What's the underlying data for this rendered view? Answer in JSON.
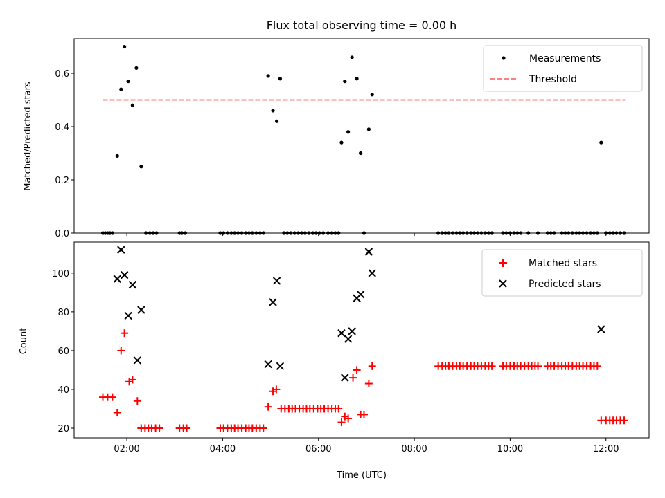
{
  "chart_data": [
    {
      "type": "scatter",
      "title": "Flux total observing time = 0.00 h",
      "xlabel": "",
      "ylabel": "Matched/Predicted stars",
      "xlim": [
        0.9,
        12.9
      ],
      "ylim": [
        0.0,
        0.73
      ],
      "yticks": [
        0.0,
        0.2,
        0.4,
        0.6
      ],
      "ytick_labels": [
        "0.0",
        "0.2",
        "0.4",
        "0.6"
      ],
      "xticks": [
        2,
        4,
        6,
        8,
        10,
        12
      ],
      "legend_position": "top-right",
      "legend": [
        {
          "label": "Measurements",
          "marker": "dot",
          "color": "#000000"
        },
        {
          "label": "Threshold",
          "marker": "dashed-line",
          "color": "#ff7f7f"
        }
      ],
      "threshold": {
        "value": 0.5,
        "x_start": 1.5,
        "x_end": 12.4
      },
      "series": [
        {
          "name": "Measurements",
          "color": "#000000",
          "points": [
            [
              1.5,
              0
            ],
            [
              1.55,
              0
            ],
            [
              1.6,
              0
            ],
            [
              1.65,
              0
            ],
            [
              1.7,
              0
            ],
            [
              1.8,
              0.29
            ],
            [
              1.88,
              0.54
            ],
            [
              1.95,
              0.7
            ],
            [
              2.03,
              0.57
            ],
            [
              2.12,
              0.48
            ],
            [
              2.2,
              0.62
            ],
            [
              2.3,
              0.25
            ],
            [
              2.4,
              0
            ],
            [
              2.48,
              0
            ],
            [
              2.55,
              0
            ],
            [
              2.62,
              0
            ],
            [
              3.1,
              0
            ],
            [
              3.15,
              0
            ],
            [
              3.22,
              0
            ],
            [
              3.95,
              0
            ],
            [
              4.02,
              0
            ],
            [
              4.1,
              0
            ],
            [
              4.18,
              0
            ],
            [
              4.25,
              0
            ],
            [
              4.32,
              0
            ],
            [
              4.4,
              0
            ],
            [
              4.48,
              0
            ],
            [
              4.55,
              0
            ],
            [
              4.62,
              0
            ],
            [
              4.7,
              0
            ],
            [
              4.78,
              0
            ],
            [
              4.85,
              0
            ],
            [
              4.95,
              0.59
            ],
            [
              5.05,
              0.46
            ],
            [
              5.13,
              0.42
            ],
            [
              5.2,
              0.58
            ],
            [
              5.28,
              0
            ],
            [
              5.35,
              0
            ],
            [
              5.42,
              0
            ],
            [
              5.5,
              0
            ],
            [
              5.58,
              0
            ],
            [
              5.65,
              0
            ],
            [
              5.72,
              0
            ],
            [
              5.8,
              0
            ],
            [
              5.88,
              0
            ],
            [
              5.95,
              0
            ],
            [
              6.02,
              0
            ],
            [
              6.1,
              0
            ],
            [
              6.2,
              0
            ],
            [
              6.28,
              0
            ],
            [
              6.35,
              0
            ],
            [
              6.42,
              0
            ],
            [
              6.48,
              0.34
            ],
            [
              6.55,
              0.57
            ],
            [
              6.62,
              0.38
            ],
            [
              6.7,
              0.66
            ],
            [
              6.8,
              0.58
            ],
            [
              6.88,
              0.3
            ],
            [
              6.95,
              0
            ],
            [
              7.05,
              0.39
            ],
            [
              7.12,
              0.52
            ],
            [
              8.5,
              0
            ],
            [
              8.58,
              0
            ],
            [
              8.65,
              0
            ],
            [
              8.72,
              0
            ],
            [
              8.8,
              0
            ],
            [
              8.88,
              0
            ],
            [
              8.95,
              0
            ],
            [
              9.02,
              0
            ],
            [
              9.1,
              0
            ],
            [
              9.18,
              0
            ],
            [
              9.25,
              0
            ],
            [
              9.32,
              0
            ],
            [
              9.4,
              0
            ],
            [
              9.48,
              0
            ],
            [
              9.55,
              0
            ],
            [
              9.62,
              0
            ],
            [
              9.85,
              0
            ],
            [
              9.92,
              0
            ],
            [
              10.0,
              0
            ],
            [
              10.08,
              0
            ],
            [
              10.15,
              0
            ],
            [
              10.22,
              0
            ],
            [
              10.38,
              0
            ],
            [
              10.58,
              0
            ],
            [
              10.78,
              0
            ],
            [
              10.85,
              0
            ],
            [
              10.92,
              0
            ],
            [
              11.08,
              0
            ],
            [
              11.15,
              0
            ],
            [
              11.22,
              0
            ],
            [
              11.3,
              0
            ],
            [
              11.38,
              0
            ],
            [
              11.45,
              0
            ],
            [
              11.52,
              0
            ],
            [
              11.6,
              0
            ],
            [
              11.68,
              0
            ],
            [
              11.75,
              0
            ],
            [
              11.82,
              0
            ],
            [
              11.9,
              0.34
            ],
            [
              12.0,
              0
            ],
            [
              12.08,
              0
            ],
            [
              12.15,
              0
            ],
            [
              12.22,
              0
            ],
            [
              12.3,
              0
            ],
            [
              12.38,
              0
            ]
          ]
        }
      ]
    },
    {
      "type": "scatter",
      "title": "",
      "xlabel": "Time (UTC)",
      "ylabel": "Count",
      "xlim": [
        0.9,
        12.9
      ],
      "ylim": [
        15,
        116
      ],
      "yticks": [
        20,
        40,
        60,
        80,
        100
      ],
      "ytick_labels": [
        "20",
        "40",
        "60",
        "80",
        "100"
      ],
      "xticks": [
        2,
        4,
        6,
        8,
        10,
        12
      ],
      "xtick_labels": [
        "02:00",
        "04:00",
        "06:00",
        "08:00",
        "10:00",
        "12:00"
      ],
      "legend_position": "top-right",
      "legend": [
        {
          "label": "Matched stars",
          "marker": "plus",
          "color": "#ff0000"
        },
        {
          "label": "Predicted stars",
          "marker": "x",
          "color": "#000000"
        }
      ],
      "series": [
        {
          "name": "Matched stars",
          "color": "#ff0000",
          "marker": "plus",
          "points": [
            [
              1.5,
              36
            ],
            [
              1.6,
              36
            ],
            [
              1.7,
              36
            ],
            [
              1.8,
              28
            ],
            [
              1.88,
              60
            ],
            [
              1.95,
              69
            ],
            [
              2.05,
              44
            ],
            [
              2.12,
              45
            ],
            [
              2.22,
              34
            ],
            [
              2.3,
              20
            ],
            [
              2.38,
              20
            ],
            [
              2.45,
              20
            ],
            [
              2.52,
              20
            ],
            [
              2.6,
              20
            ],
            [
              2.68,
              20
            ],
            [
              3.1,
              20
            ],
            [
              3.18,
              20
            ],
            [
              3.25,
              20
            ],
            [
              3.95,
              20
            ],
            [
              4.02,
              20
            ],
            [
              4.1,
              20
            ],
            [
              4.18,
              20
            ],
            [
              4.25,
              20
            ],
            [
              4.32,
              20
            ],
            [
              4.4,
              20
            ],
            [
              4.48,
              20
            ],
            [
              4.55,
              20
            ],
            [
              4.62,
              20
            ],
            [
              4.7,
              20
            ],
            [
              4.78,
              20
            ],
            [
              4.85,
              20
            ],
            [
              4.95,
              31
            ],
            [
              5.05,
              39
            ],
            [
              5.12,
              40
            ],
            [
              5.22,
              30
            ],
            [
              5.3,
              30
            ],
            [
              5.38,
              30
            ],
            [
              5.45,
              30
            ],
            [
              5.52,
              30
            ],
            [
              5.6,
              30
            ],
            [
              5.68,
              30
            ],
            [
              5.75,
              30
            ],
            [
              5.82,
              30
            ],
            [
              5.9,
              30
            ],
            [
              5.98,
              30
            ],
            [
              6.05,
              30
            ],
            [
              6.12,
              30
            ],
            [
              6.2,
              30
            ],
            [
              6.28,
              30
            ],
            [
              6.35,
              30
            ],
            [
              6.42,
              30
            ],
            [
              6.48,
              23
            ],
            [
              6.55,
              26
            ],
            [
              6.62,
              25
            ],
            [
              6.72,
              46
            ],
            [
              6.8,
              50
            ],
            [
              6.88,
              27
            ],
            [
              6.95,
              27
            ],
            [
              7.05,
              43
            ],
            [
              7.12,
              52
            ],
            [
              8.5,
              52
            ],
            [
              8.58,
              52
            ],
            [
              8.65,
              52
            ],
            [
              8.72,
              52
            ],
            [
              8.8,
              52
            ],
            [
              8.88,
              52
            ],
            [
              8.95,
              52
            ],
            [
              9.02,
              52
            ],
            [
              9.1,
              52
            ],
            [
              9.18,
              52
            ],
            [
              9.25,
              52
            ],
            [
              9.32,
              52
            ],
            [
              9.4,
              52
            ],
            [
              9.48,
              52
            ],
            [
              9.55,
              52
            ],
            [
              9.62,
              52
            ],
            [
              9.85,
              52
            ],
            [
              9.92,
              52
            ],
            [
              10.0,
              52
            ],
            [
              10.08,
              52
            ],
            [
              10.15,
              52
            ],
            [
              10.22,
              52
            ],
            [
              10.3,
              52
            ],
            [
              10.38,
              52
            ],
            [
              10.45,
              52
            ],
            [
              10.52,
              52
            ],
            [
              10.58,
              52
            ],
            [
              10.78,
              52
            ],
            [
              10.85,
              52
            ],
            [
              10.92,
              52
            ],
            [
              11.0,
              52
            ],
            [
              11.08,
              52
            ],
            [
              11.15,
              52
            ],
            [
              11.22,
              52
            ],
            [
              11.3,
              52
            ],
            [
              11.38,
              52
            ],
            [
              11.45,
              52
            ],
            [
              11.52,
              52
            ],
            [
              11.6,
              52
            ],
            [
              11.68,
              52
            ],
            [
              11.75,
              52
            ],
            [
              11.82,
              52
            ],
            [
              11.9,
              24
            ],
            [
              12.0,
              24
            ],
            [
              12.08,
              24
            ],
            [
              12.15,
              24
            ],
            [
              12.22,
              24
            ],
            [
              12.3,
              24
            ],
            [
              12.38,
              24
            ]
          ]
        },
        {
          "name": "Predicted stars",
          "color": "#000000",
          "marker": "x",
          "points": [
            [
              1.8,
              97
            ],
            [
              1.88,
              112
            ],
            [
              1.95,
              99
            ],
            [
              2.03,
              78
            ],
            [
              2.12,
              94
            ],
            [
              2.22,
              55
            ],
            [
              2.3,
              81
            ],
            [
              4.95,
              53
            ],
            [
              5.05,
              85
            ],
            [
              5.13,
              96
            ],
            [
              5.2,
              52
            ],
            [
              6.48,
              69
            ],
            [
              6.55,
              46
            ],
            [
              6.62,
              66
            ],
            [
              6.7,
              70
            ],
            [
              6.8,
              87
            ],
            [
              6.88,
              89
            ],
            [
              7.05,
              111
            ],
            [
              7.12,
              100
            ],
            [
              11.9,
              71
            ]
          ]
        }
      ]
    }
  ]
}
